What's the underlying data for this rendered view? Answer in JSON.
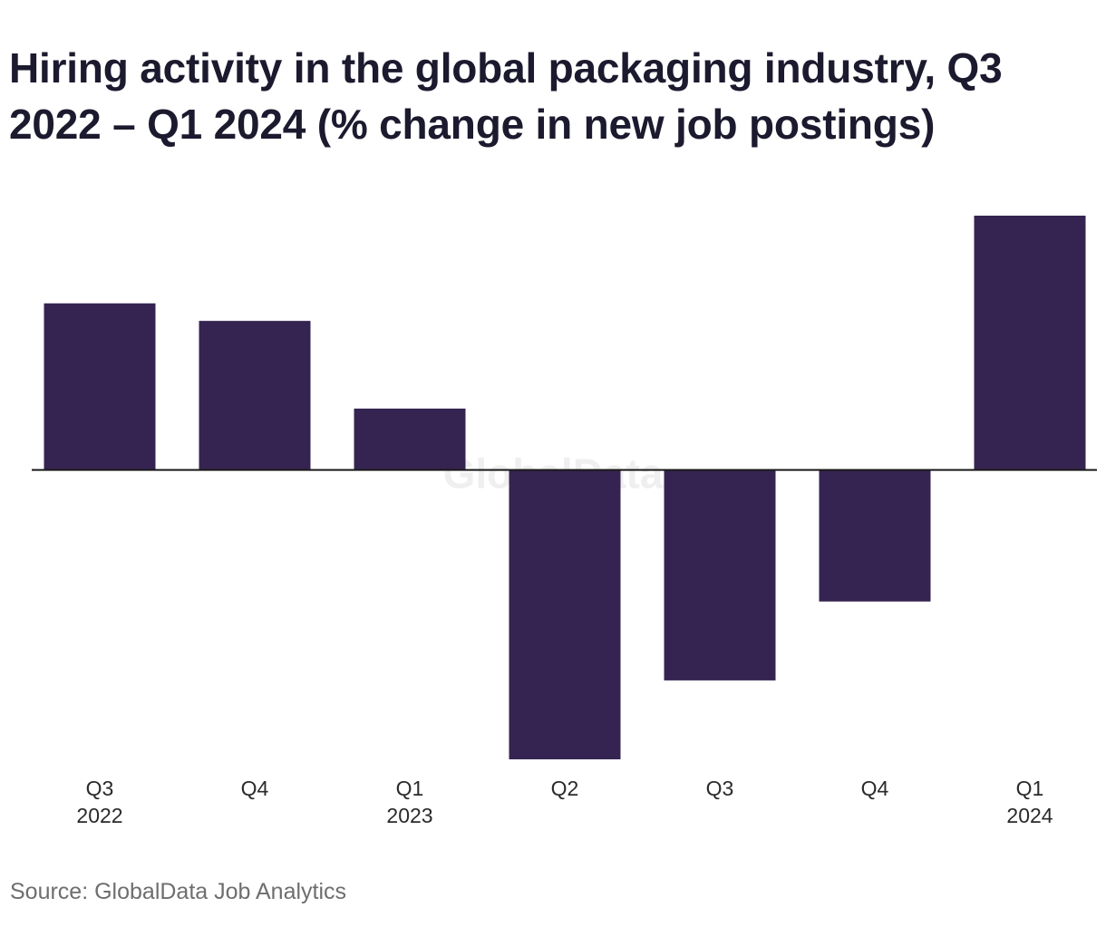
{
  "chart_data": {
    "type": "bar",
    "title": "Hiring activity in the global packaging industry, Q3 2022 – Q1 2024 (% change in new job postings)",
    "source": "Source: GlobalData Job Analytics",
    "watermark": "GlobalData",
    "categories": [
      {
        "quarter": "Q3",
        "year": "2022"
      },
      {
        "quarter": "Q4",
        "year": ""
      },
      {
        "quarter": "Q1",
        "year": "2023"
      },
      {
        "quarter": "Q2",
        "year": ""
      },
      {
        "quarter": "Q3",
        "year": ""
      },
      {
        "quarter": "Q4",
        "year": ""
      },
      {
        "quarter": "Q1",
        "year": "2024"
      }
    ],
    "values": [
      19,
      17,
      7,
      -33,
      -24,
      -15,
      29
    ],
    "ylim": [
      -33,
      29
    ],
    "xlabel": "",
    "ylabel": "",
    "grid": false,
    "legend": "none",
    "bar_color": "#352451",
    "axis_color": "#1a1a1a"
  }
}
